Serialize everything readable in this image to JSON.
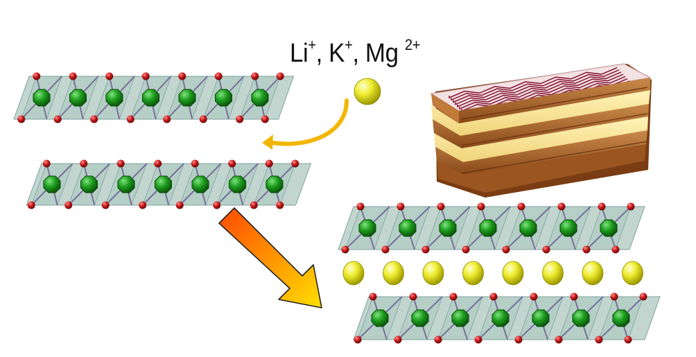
{
  "label": {
    "li": "Li",
    "k": "K",
    "mg": "Mg",
    "plus": "+",
    "mg_charge": "2+",
    "sep": ","
  },
  "colors": {
    "octahedron_fill": "#8fb5a8",
    "octahedron_edge": "#7fa0a0",
    "metal": "#1e9e1e",
    "oxygen": "#cc1a1a",
    "bond": "#3a8fd6",
    "ion": "#e5e000",
    "arrow_top": "#ff5a00",
    "arrow_bottom": "#ffd400",
    "curved_arrow": "#f2b600"
  },
  "icons": {
    "layer": "layered-octahedral-sheet",
    "ion": "intercalant-ion-sphere",
    "arrow": "intercalation-arrow",
    "pastry": "mille-feuille-pastry"
  }
}
